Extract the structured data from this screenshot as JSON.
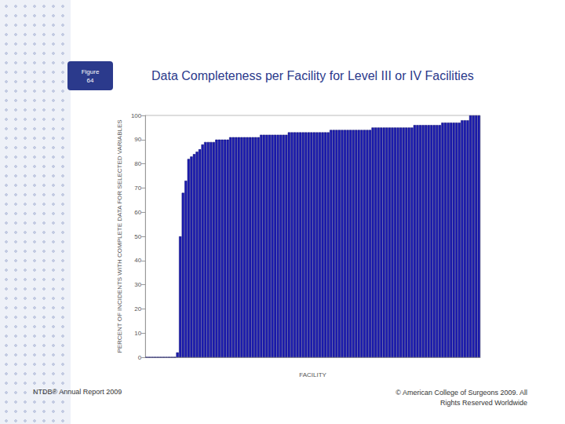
{
  "slide": {
    "figure_label": [
      "Figure",
      "64"
    ],
    "footer_left": "NTDB® Annual Report 2009",
    "footer_right": [
      "© American College of Surgeons 2009.  All",
      "Rights Reserved Worldwide"
    ]
  },
  "chart_data": {
    "type": "bar",
    "title": "Data Completeness per Facility for Level III or IV Facilities",
    "x_label": "FACILITY",
    "y_label": "PERCENT OF INCIDENTS WITH COMPLETE DATA FOR SELECTED VARIABLES",
    "categories": [
      null,
      null,
      null,
      null,
      null,
      null,
      null,
      null,
      null,
      null,
      null,
      null,
      null,
      null,
      null,
      null,
      null,
      null,
      null,
      null,
      null,
      null,
      null,
      null,
      null,
      null,
      null,
      null,
      null,
      null,
      null,
      null,
      null,
      null,
      null,
      null,
      null,
      null,
      null,
      null,
      null,
      null,
      null,
      null,
      null,
      null,
      null,
      null,
      null,
      null,
      null,
      null,
      null,
      null,
      null,
      null,
      null,
      null,
      null,
      null,
      null,
      null,
      null,
      null,
      null,
      null,
      null,
      null,
      null,
      null,
      null,
      null,
      null,
      null,
      null,
      null,
      null,
      null,
      null,
      null,
      null,
      null,
      null,
      null,
      null,
      null,
      null,
      null,
      null,
      null,
      null,
      null,
      null,
      null,
      null,
      null,
      null,
      null,
      null,
      null,
      null,
      null,
      null,
      null,
      null,
      null,
      null,
      null,
      null,
      null,
      null,
      null,
      null,
      null,
      null,
      null,
      null,
      null,
      null,
      null
    ],
    "values": [
      0,
      0,
      0,
      0,
      0,
      0,
      0,
      0,
      0,
      0,
      0,
      2,
      50,
      68,
      73,
      82,
      83,
      84,
      85,
      86,
      88,
      89,
      89,
      89,
      89,
      90,
      90,
      90,
      90,
      90,
      91,
      91,
      91,
      91,
      91,
      91,
      91,
      91,
      91,
      91,
      91,
      92,
      92,
      92,
      92,
      92,
      92,
      92,
      92,
      92,
      92,
      93,
      93,
      93,
      93,
      93,
      93,
      93,
      93,
      93,
      93,
      93,
      93,
      93,
      93,
      93,
      94,
      94,
      94,
      94,
      94,
      94,
      94,
      94,
      94,
      94,
      94,
      94,
      94,
      94,
      94,
      95,
      95,
      95,
      95,
      95,
      95,
      95,
      95,
      95,
      95,
      95,
      95,
      95,
      95,
      95,
      96,
      96,
      96,
      96,
      96,
      96,
      96,
      96,
      96,
      96,
      97,
      97,
      97,
      97,
      97,
      97,
      97,
      98,
      98,
      98,
      100,
      100,
      100,
      100
    ],
    "color": "#1c1cb0",
    "ylim": [
      0,
      100
    ],
    "yticks": [
      0,
      10,
      20,
      30,
      40,
      50,
      60,
      70,
      80,
      90,
      100
    ],
    "grid": false,
    "tick_labels": "y"
  }
}
